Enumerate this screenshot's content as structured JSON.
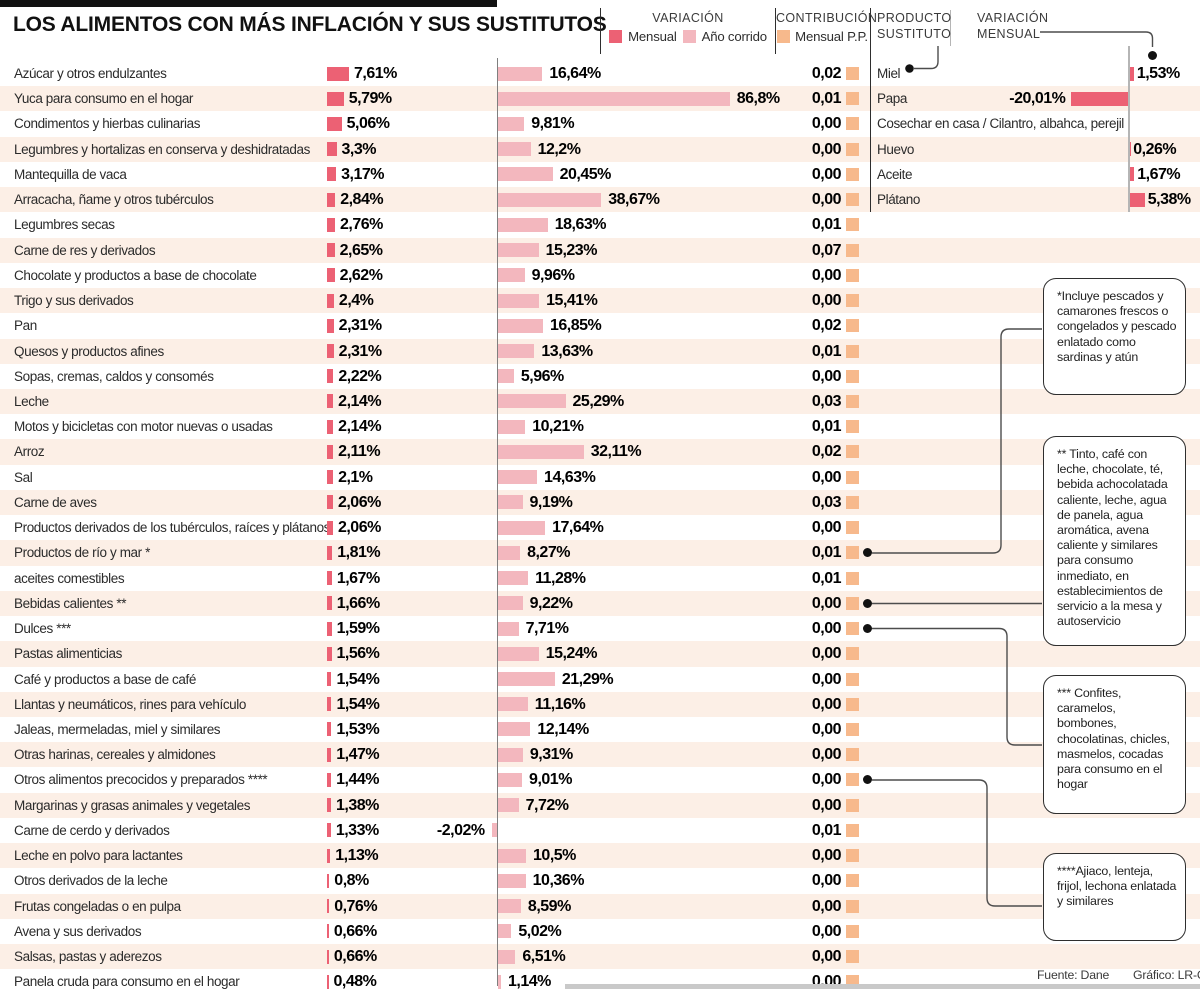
{
  "title": "LOS ALIMENTOS CON MÁS INFLACIÓN Y SUS SUSTITUTOS",
  "header": {
    "variacion_label": "VARIACIÓN",
    "legend_mensual": "Mensual",
    "legend_ano_corrido": "Año corrido",
    "contribucion_label": "CONTRIBUCIÓN",
    "legend_contribucion": "Mensual P.P.",
    "producto_sustituto_label": "PRODUCTO SUSTITUTO",
    "variacion_mensual_label": "VARIACIÓN MENSUAL"
  },
  "colors": {
    "mensual": "#ec6174",
    "ano_corrido": "#f3b7be",
    "contribucion": "#f7b98c",
    "row_band": "#fcefe6"
  },
  "footer": {
    "source": "Fuente: Dane",
    "credit": "Gráfico: LR-GR"
  },
  "chart_data": {
    "type": "bar",
    "unit": "%",
    "columns": [
      "Alimento",
      "Variación mensual %",
      "Variación año corrido %",
      "Contribución mensual P.P.",
      "Producto sustituto",
      "Variación mensual del sustituto %"
    ],
    "rows": [
      {
        "label": "Azúcar y otros endulzantes",
        "mensual": 7.61,
        "mensual_text": "7,61%",
        "ano_corrido": 16.64,
        "ano_corrido_text": "16,64%",
        "contribucion": 0.02,
        "contribucion_text": "0,02",
        "footnote_dot": false,
        "sustituto": {
          "name": "Miel",
          "variacion": 1.53,
          "variacion_text": "1,53%"
        }
      },
      {
        "label": "Yuca para consumo en el hogar",
        "mensual": 5.79,
        "mensual_text": "5,79%",
        "ano_corrido": 86.8,
        "ano_corrido_text": "86,8%",
        "contribucion": 0.01,
        "contribucion_text": "0,01",
        "footnote_dot": false,
        "sustituto": {
          "name": "Papa",
          "variacion": -20.01,
          "variacion_text": "-20,01%"
        }
      },
      {
        "label": "Condimentos y hierbas culinarias",
        "mensual": 5.06,
        "mensual_text": "5,06%",
        "ano_corrido": 9.81,
        "ano_corrido_text": "9,81%",
        "contribucion": 0.0,
        "contribucion_text": "0,00",
        "footnote_dot": false,
        "sustituto": {
          "name": "Cosechar en casa / Cilantro, albahca, perejil"
        }
      },
      {
        "label": "Legumbres y hortalizas en conserva y deshidratadas",
        "mensual": 3.3,
        "mensual_text": "3,3%",
        "ano_corrido": 12.2,
        "ano_corrido_text": "12,2%",
        "contribucion": 0.0,
        "contribucion_text": "0,00",
        "footnote_dot": false,
        "sustituto": {
          "name": "Huevo",
          "variacion": 0.26,
          "variacion_text": "0,26%"
        }
      },
      {
        "label": "Mantequilla de vaca",
        "mensual": 3.17,
        "mensual_text": "3,17%",
        "ano_corrido": 20.45,
        "ano_corrido_text": "20,45%",
        "contribucion": 0.0,
        "contribucion_text": "0,00",
        "footnote_dot": false,
        "sustituto": {
          "name": "Aceite",
          "variacion": 1.67,
          "variacion_text": "1,67%"
        }
      },
      {
        "label": "Arracacha, ñame y otros tubérculos",
        "mensual": 2.84,
        "mensual_text": "2,84%",
        "ano_corrido": 38.67,
        "ano_corrido_text": "38,67%",
        "contribucion": 0.0,
        "contribucion_text": "0,00",
        "footnote_dot": false,
        "sustituto": {
          "name": "Plátano",
          "variacion": 5.38,
          "variacion_text": "5,38%"
        }
      },
      {
        "label": "Legumbres secas",
        "mensual": 2.76,
        "mensual_text": "2,76%",
        "ano_corrido": 18.63,
        "ano_corrido_text": "18,63%",
        "contribucion": 0.01,
        "contribucion_text": "0,01",
        "footnote_dot": false
      },
      {
        "label": "Carne de res y derivados",
        "mensual": 2.65,
        "mensual_text": "2,65%",
        "ano_corrido": 15.23,
        "ano_corrido_text": "15,23%",
        "contribucion": 0.07,
        "contribucion_text": "0,07",
        "footnote_dot": false
      },
      {
        "label": "Chocolate y productos a base de chocolate",
        "mensual": 2.62,
        "mensual_text": "2,62%",
        "ano_corrido": 9.96,
        "ano_corrido_text": "9,96%",
        "contribucion": 0.0,
        "contribucion_text": "0,00",
        "footnote_dot": false
      },
      {
        "label": "Trigo y sus derivados",
        "mensual": 2.4,
        "mensual_text": "2,4%",
        "ano_corrido": 15.41,
        "ano_corrido_text": "15,41%",
        "contribucion": 0.0,
        "contribucion_text": "0,00",
        "footnote_dot": false
      },
      {
        "label": "Pan",
        "mensual": 2.31,
        "mensual_text": "2,31%",
        "ano_corrido": 16.85,
        "ano_corrido_text": "16,85%",
        "contribucion": 0.02,
        "contribucion_text": "0,02",
        "footnote_dot": false
      },
      {
        "label": "Quesos y productos afines",
        "mensual": 2.31,
        "mensual_text": "2,31%",
        "ano_corrido": 13.63,
        "ano_corrido_text": "13,63%",
        "contribucion": 0.01,
        "contribucion_text": "0,01",
        "footnote_dot": false
      },
      {
        "label": "Sopas, cremas, caldos y consomés",
        "mensual": 2.22,
        "mensual_text": "2,22%",
        "ano_corrido": 5.96,
        "ano_corrido_text": "5,96%",
        "contribucion": 0.0,
        "contribucion_text": "0,00",
        "footnote_dot": false
      },
      {
        "label": "Leche",
        "mensual": 2.14,
        "mensual_text": "2,14%",
        "ano_corrido": 25.29,
        "ano_corrido_text": "25,29%",
        "contribucion": 0.03,
        "contribucion_text": "0,03",
        "footnote_dot": false
      },
      {
        "label": "Motos y bicicletas con motor nuevas o usadas",
        "mensual": 2.14,
        "mensual_text": "2,14%",
        "ano_corrido": 10.21,
        "ano_corrido_text": "10,21%",
        "contribucion": 0.01,
        "contribucion_text": "0,01",
        "footnote_dot": false
      },
      {
        "label": "Arroz",
        "mensual": 2.11,
        "mensual_text": "2,11%",
        "ano_corrido": 32.11,
        "ano_corrido_text": "32,11%",
        "contribucion": 0.02,
        "contribucion_text": "0,02",
        "footnote_dot": false
      },
      {
        "label": "Sal",
        "mensual": 2.1,
        "mensual_text": "2,1%",
        "ano_corrido": 14.63,
        "ano_corrido_text": "14,63%",
        "contribucion": 0.0,
        "contribucion_text": "0,00",
        "footnote_dot": false
      },
      {
        "label": "Carne de aves",
        "mensual": 2.06,
        "mensual_text": "2,06%",
        "ano_corrido": 9.19,
        "ano_corrido_text": "9,19%",
        "contribucion": 0.03,
        "contribucion_text": "0,03",
        "footnote_dot": false
      },
      {
        "label": "Productos derivados de los tubérculos, raíces y plátanos",
        "mensual": 2.06,
        "mensual_text": "2,06%",
        "ano_corrido": 17.64,
        "ano_corrido_text": "17,64%",
        "contribucion": 0.0,
        "contribucion_text": "0,00",
        "footnote_dot": false
      },
      {
        "label": "Productos de río y mar *",
        "mensual": 1.81,
        "mensual_text": "1,81%",
        "ano_corrido": 8.27,
        "ano_corrido_text": "8,27%",
        "contribucion": 0.01,
        "contribucion_text": "0,01",
        "footnote_dot": true
      },
      {
        "label": "aceites comestibles",
        "mensual": 1.67,
        "mensual_text": "1,67%",
        "ano_corrido": 11.28,
        "ano_corrido_text": "11,28%",
        "contribucion": 0.01,
        "contribucion_text": "0,01",
        "footnote_dot": false
      },
      {
        "label": "Bebidas calientes **",
        "mensual": 1.66,
        "mensual_text": "1,66%",
        "ano_corrido": 9.22,
        "ano_corrido_text": "9,22%",
        "contribucion": 0.0,
        "contribucion_text": "0,00",
        "footnote_dot": true
      },
      {
        "label": "Dulces ***",
        "mensual": 1.59,
        "mensual_text": "1,59%",
        "ano_corrido": 7.71,
        "ano_corrido_text": "7,71%",
        "contribucion": 0.0,
        "contribucion_text": "0,00",
        "footnote_dot": true
      },
      {
        "label": "Pastas alimenticias",
        "mensual": 1.56,
        "mensual_text": "1,56%",
        "ano_corrido": 15.24,
        "ano_corrido_text": "15,24%",
        "contribucion": 0.0,
        "contribucion_text": "0,00",
        "footnote_dot": false
      },
      {
        "label": "Café y productos a base de café",
        "mensual": 1.54,
        "mensual_text": "1,54%",
        "ano_corrido": 21.29,
        "ano_corrido_text": "21,29%",
        "contribucion": 0.0,
        "contribucion_text": "0,00",
        "footnote_dot": false
      },
      {
        "label": "Llantas y neumáticos, rines para vehículo",
        "mensual": 1.54,
        "mensual_text": "1,54%",
        "ano_corrido": 11.16,
        "ano_corrido_text": "11,16%",
        "contribucion": 0.0,
        "contribucion_text": "0,00",
        "footnote_dot": false
      },
      {
        "label": "Jaleas, mermeladas, miel y similares",
        "mensual": 1.53,
        "mensual_text": "1,53%",
        "ano_corrido": 12.14,
        "ano_corrido_text": "12,14%",
        "contribucion": 0.0,
        "contribucion_text": "0,00",
        "footnote_dot": false
      },
      {
        "label": "Otras harinas, cereales y almidones",
        "mensual": 1.47,
        "mensual_text": "1,47%",
        "ano_corrido": 9.31,
        "ano_corrido_text": "9,31%",
        "contribucion": 0.0,
        "contribucion_text": "0,00",
        "footnote_dot": false
      },
      {
        "label": "Otros alimentos precocidos y preparados ****",
        "mensual": 1.44,
        "mensual_text": "1,44%",
        "ano_corrido": 9.01,
        "ano_corrido_text": "9,01%",
        "contribucion": 0.0,
        "contribucion_text": "0,00",
        "footnote_dot": true
      },
      {
        "label": "Margarinas y grasas animales y vegetales",
        "mensual": 1.38,
        "mensual_text": "1,38%",
        "ano_corrido": 7.72,
        "ano_corrido_text": "7,72%",
        "contribucion": 0.0,
        "contribucion_text": "0,00",
        "footnote_dot": false
      },
      {
        "label": "Carne de cerdo y derivados",
        "mensual": 1.33,
        "mensual_text": "1,33%",
        "ano_corrido": -2.02,
        "ano_corrido_text": "-2,02%",
        "contribucion": 0.01,
        "contribucion_text": "0,01",
        "footnote_dot": false
      },
      {
        "label": "Leche en polvo para lactantes",
        "mensual": 1.13,
        "mensual_text": "1,13%",
        "ano_corrido": 10.5,
        "ano_corrido_text": "10,5%",
        "contribucion": 0.0,
        "contribucion_text": "0,00",
        "footnote_dot": false
      },
      {
        "label": "Otros derivados de la leche",
        "mensual": 0.8,
        "mensual_text": "0,8%",
        "ano_corrido": 10.36,
        "ano_corrido_text": "10,36%",
        "contribucion": 0.0,
        "contribucion_text": "0,00",
        "footnote_dot": false
      },
      {
        "label": "Frutas congeladas o en pulpa",
        "mensual": 0.76,
        "mensual_text": "0,76%",
        "ano_corrido": 8.59,
        "ano_corrido_text": "8,59%",
        "contribucion": 0.0,
        "contribucion_text": "0,00",
        "footnote_dot": false
      },
      {
        "label": "Avena y sus derivados",
        "mensual": 0.66,
        "mensual_text": "0,66%",
        "ano_corrido": 5.02,
        "ano_corrido_text": "5,02%",
        "contribucion": 0.0,
        "contribucion_text": "0,00",
        "footnote_dot": false
      },
      {
        "label": "Salsas, pastas y aderezos",
        "mensual": 0.66,
        "mensual_text": "0,66%",
        "ano_corrido": 6.51,
        "ano_corrido_text": "6,51%",
        "contribucion": 0.0,
        "contribucion_text": "0,00",
        "footnote_dot": false
      },
      {
        "label": "Panela cruda para consumo en el hogar",
        "mensual": 0.48,
        "mensual_text": "0,48%",
        "ano_corrido": 1.14,
        "ano_corrido_text": "1,14%",
        "contribucion": 0.0,
        "contribucion_text": "0,00",
        "footnote_dot": false
      }
    ],
    "notes": [
      "*Incluye pescados y camarones frescos o congelados y pescado enlatado como sardinas y atún",
      "** Tinto, café con leche, chocolate, té, bebida achocolatada caliente, leche, agua de panela, agua aromática, avena caliente y similares  para consumo inmediato, en establecimientos de servicio a la mesa y autoservicio",
      "*** Confites, caramelos, bombones, chocolatinas, chicles, masmelos, cocadas para consumo en el hogar",
      "****Ajiaco, lenteja, frijol, lechona enlatada y similares"
    ]
  }
}
